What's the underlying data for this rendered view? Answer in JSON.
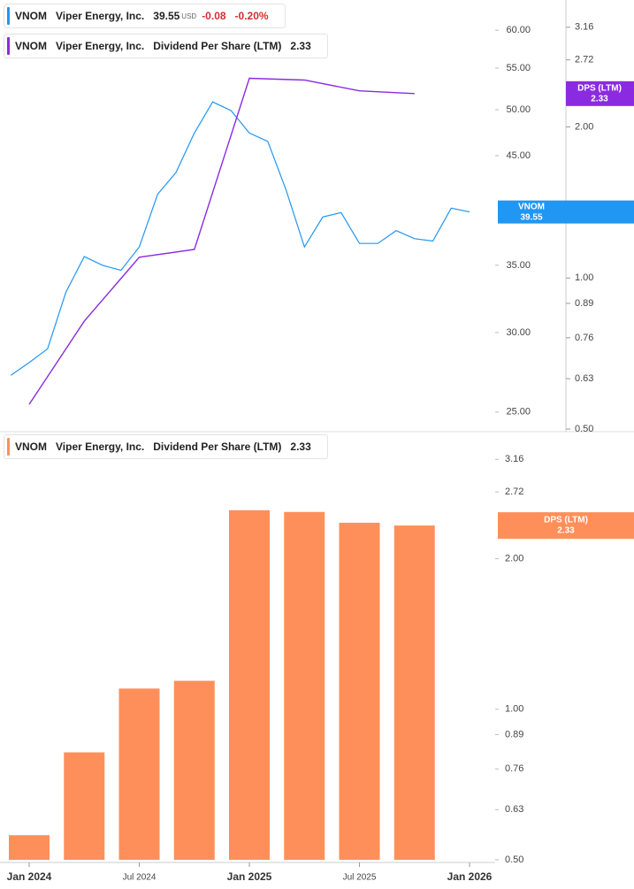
{
  "chart_data": [
    {
      "type": "line",
      "legend": {
        "ticker": "VNOM",
        "company": "Viper Energy, Inc.",
        "price": 39.55,
        "currency": "USD",
        "change": -0.08,
        "change_pct": {
          "value": -0.2,
          "label": "-0.20%"
        }
      },
      "x": [
        "2023-12",
        "2024-01",
        "2024-02",
        "2024-03",
        "2024-04",
        "2024-05",
        "2024-06",
        "2024-07",
        "2024-08",
        "2024-09",
        "2024-10",
        "2024-11",
        "2024-12",
        "2025-01",
        "2025-02",
        "2025-03",
        "2025-04",
        "2025-05",
        "2025-06",
        "2025-07",
        "2025-08",
        "2025-09",
        "2025-10",
        "2025-11",
        "2025-12",
        "2026-01"
      ],
      "series": [
        {
          "name": "VNOM",
          "color": "#2196f3",
          "values": [
            27.2,
            28.0,
            28.9,
            32.9,
            35.7,
            35.0,
            34.6,
            36.5,
            41.2,
            43.3,
            47.4,
            50.9,
            49.9,
            47.4,
            46.5,
            41.6,
            36.5,
            39.1,
            39.5,
            36.8,
            36.8,
            37.9,
            37.2,
            37.0,
            39.9,
            39.55
          ]
        },
        {
          "name": "Dividend Per Share (LTM)",
          "short_name": "DPS (LTM)",
          "color": "#8a2be2",
          "axis": "y2",
          "x": [
            "2024-01",
            "2024-04",
            "2024-07",
            "2024-10",
            "2025-01",
            "2025-04",
            "2025-07",
            "2025-10"
          ],
          "values": [
            0.56,
            0.82,
            1.1,
            1.14,
            2.5,
            2.48,
            2.36,
            2.33
          ]
        }
      ],
      "log_scale": true,
      "ylim": [
        23.9,
        64.3
      ],
      "yticks": [
        {
          "value": 25,
          "label": "25.00"
        },
        {
          "value": 30,
          "label": "30.00"
        },
        {
          "value": 35,
          "label": "35.00"
        },
        {
          "value": 45,
          "label": "45.00"
        },
        {
          "value": 50,
          "label": "50.00"
        },
        {
          "value": 55,
          "label": "55.00"
        },
        {
          "value": 60,
          "label": "60.00"
        }
      ],
      "y2lim": [
        0.494,
        3.58
      ],
      "y2ticks": [
        {
          "value": 0.5,
          "label": "0.50"
        },
        0.63,
        0.76,
        0.89,
        {
          "value": 1,
          "label": "1.00"
        },
        {
          "value": 2,
          "label": "2.00"
        },
        2.72,
        3.16
      ]
    },
    {
      "type": "bar",
      "legend": {
        "ticker": "VNOM",
        "company": "Viper Energy, Inc."
      },
      "series_name": "Dividend Per Share (LTM)",
      "short_name": "DPS (LTM)",
      "color": "#ff8f5a",
      "x": [
        "2024-01",
        "2024-04",
        "2024-07",
        "2024-10",
        "2025-01",
        "2025-04",
        "2025-07",
        "2025-10"
      ],
      "values": [
        0.56,
        0.82,
        1.1,
        1.14,
        2.5,
        2.48,
        2.36,
        2.33
      ],
      "log_scale": true,
      "ylim": [
        0.5,
        3.56
      ],
      "yticks": [
        {
          "value": 0.5,
          "label": "0.50"
        },
        0.63,
        0.76,
        0.89,
        {
          "value": 1,
          "label": "1.00"
        },
        {
          "value": 2,
          "label": "2.00"
        },
        2.72,
        3.16
      ],
      "xticks": [
        {
          "value": "2024-01",
          "label": "Jan 2024"
        },
        {
          "value": "2024-07",
          "label": "Jul 2024"
        },
        {
          "value": "2025-01",
          "label": "Jan 2025"
        },
        {
          "value": "2025-07",
          "label": "Jul 2025"
        },
        {
          "value": "2026-01",
          "label": "Jan 2026"
        }
      ]
    }
  ]
}
